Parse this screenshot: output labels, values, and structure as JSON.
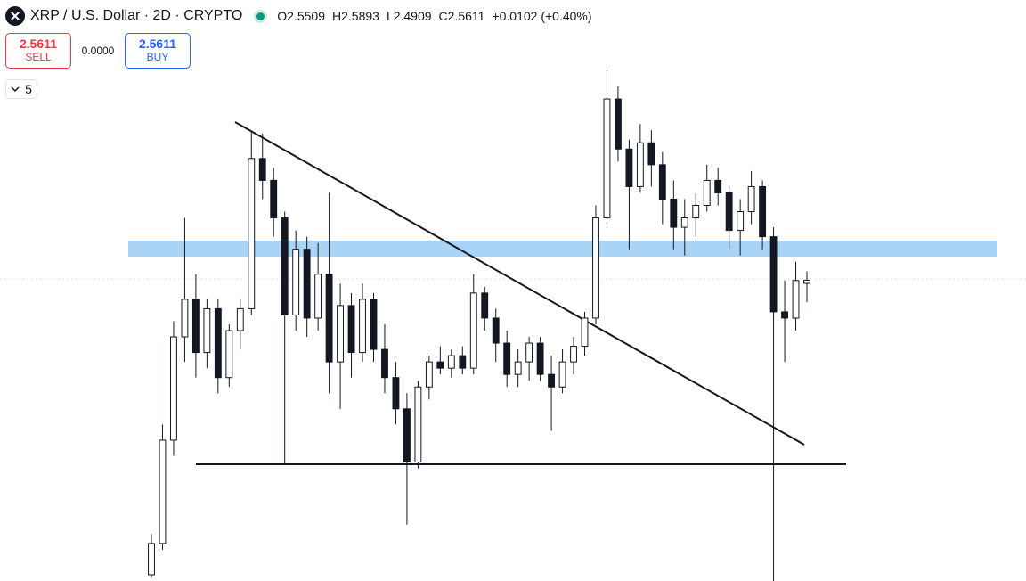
{
  "header": {
    "symbol": "XRP / U.S. Dollar · 2D · CRYPTO",
    "open": "O2.5509",
    "high": "H2.5893",
    "low": "L2.4909",
    "close": "C2.5611",
    "change": "+0.0102 (+0.40%)"
  },
  "trade": {
    "sell_price": "2.5611",
    "sell": "SELL",
    "spread": "0.0000",
    "buy_price": "2.5611",
    "buy": "BUY"
  },
  "indicators_count": "5",
  "chart_data": {
    "type": "candlestick",
    "ylim": [
      1.6,
      3.2
    ],
    "up_color": "#ffffff",
    "down_color": "#131722",
    "open": [
      1.62,
      1.72,
      2.05,
      2.38,
      2.5,
      2.33,
      2.47,
      2.25,
      2.4,
      2.47,
      2.95,
      2.88,
      2.76,
      2.45,
      2.66,
      2.44,
      2.58,
      2.3,
      2.48,
      2.33,
      2.5,
      2.34,
      2.25,
      2.15,
      1.98,
      2.22,
      2.3,
      2.28,
      2.32,
      2.28,
      2.52,
      2.44,
      2.36,
      2.26,
      2.3,
      2.36,
      2.26,
      2.22,
      2.3,
      2.35,
      2.44,
      2.76,
      3.14,
      2.98,
      2.86,
      3.0,
      2.93,
      2.82,
      2.73,
      2.76,
      2.8,
      2.88,
      2.84,
      2.72,
      2.78,
      2.86,
      2.7,
      2.46,
      2.44,
      2.5509
    ],
    "high": [
      1.75,
      2.1,
      2.43,
      2.76,
      2.58,
      2.5,
      2.5,
      2.42,
      2.5,
      3.04,
      3.03,
      2.92,
      2.78,
      2.72,
      2.7,
      2.68,
      2.84,
      2.55,
      2.52,
      2.55,
      2.52,
      2.42,
      2.3,
      2.2,
      2.24,
      2.32,
      2.35,
      2.34,
      2.35,
      2.58,
      2.54,
      2.47,
      2.4,
      2.34,
      2.38,
      2.38,
      2.32,
      2.34,
      2.38,
      2.46,
      2.8,
      3.23,
      3.18,
      3.01,
      3.06,
      3.04,
      2.97,
      2.88,
      2.82,
      2.84,
      2.93,
      2.92,
      2.86,
      2.82,
      2.91,
      2.88,
      2.73,
      2.56,
      2.62,
      2.5893
    ],
    "low": [
      1.61,
      1.7,
      2.0,
      2.3,
      2.25,
      2.28,
      2.2,
      2.22,
      2.34,
      2.45,
      2.82,
      2.7,
      1.97,
      2.4,
      2.38,
      2.4,
      2.2,
      2.15,
      2.25,
      2.3,
      2.3,
      2.2,
      2.1,
      1.78,
      1.96,
      2.18,
      2.26,
      2.25,
      2.26,
      2.26,
      2.4,
      2.3,
      2.22,
      2.22,
      2.24,
      2.24,
      2.08,
      2.2,
      2.26,
      2.32,
      2.42,
      2.74,
      2.94,
      2.66,
      2.84,
      2.86,
      2.74,
      2.66,
      2.64,
      2.7,
      2.78,
      2.8,
      2.66,
      2.64,
      2.74,
      2.66,
      1.6,
      2.3,
      2.4,
      2.4909
    ],
    "close": [
      1.72,
      2.05,
      2.38,
      2.5,
      2.33,
      2.47,
      2.25,
      2.4,
      2.47,
      2.95,
      2.88,
      2.76,
      2.45,
      2.66,
      2.44,
      2.58,
      2.3,
      2.48,
      2.33,
      2.5,
      2.34,
      2.25,
      2.15,
      1.98,
      2.22,
      2.3,
      2.28,
      2.32,
      2.28,
      2.52,
      2.44,
      2.36,
      2.26,
      2.3,
      2.36,
      2.26,
      2.22,
      2.3,
      2.35,
      2.44,
      2.76,
      3.14,
      2.98,
      2.86,
      3.0,
      2.93,
      2.82,
      2.73,
      2.76,
      2.8,
      2.88,
      2.84,
      2.72,
      2.78,
      2.86,
      2.7,
      2.46,
      2.44,
      2.56,
      2.5611
    ]
  }
}
